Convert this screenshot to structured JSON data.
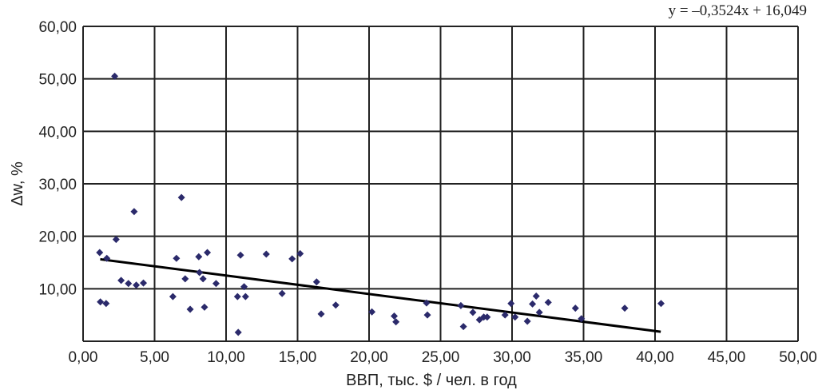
{
  "chart_data": {
    "type": "scatter",
    "title": "",
    "xlabel": "ВВП, тыс. $ / чел. в год",
    "ylabel": "Δw, %",
    "xlim": [
      0,
      50
    ],
    "ylim": [
      0,
      60
    ],
    "grid": true,
    "xticks": [
      0,
      5,
      10,
      15,
      20,
      25,
      30,
      35,
      40,
      45,
      50
    ],
    "yticks": [
      10,
      20,
      30,
      40,
      50,
      60
    ],
    "xtick_labels": [
      "0,00",
      "5,00",
      "10,00",
      "15,00",
      "20,00",
      "25,00",
      "30,00",
      "35,00",
      "40,00",
      "45,00",
      "50,00"
    ],
    "ytick_labels": [
      "10,00",
      "20,00",
      "30,00",
      "40,00",
      "50,00",
      "60,00"
    ],
    "marker_color": "#2b2a6b",
    "trend_color": "#000000",
    "trendline": {
      "slope": -0.3524,
      "intercept": 16.049,
      "x_range": [
        1.2,
        40.4
      ],
      "equation": "y = –0,3524x + 16,049"
    },
    "points": [
      [
        1.21,
        7.5
      ],
      [
        1.61,
        7.2
      ],
      [
        1.16,
        16.9
      ],
      [
        1.66,
        15.8
      ],
      [
        2.31,
        19.4
      ],
      [
        2.21,
        50.5
      ],
      [
        3.57,
        24.7
      ],
      [
        2.66,
        11.6
      ],
      [
        3.17,
        11.0
      ],
      [
        3.72,
        10.7
      ],
      [
        4.22,
        11.1
      ],
      [
        6.28,
        8.5
      ],
      [
        6.53,
        15.8
      ],
      [
        6.88,
        27.4
      ],
      [
        7.14,
        11.9
      ],
      [
        7.49,
        6.1
      ],
      [
        8.09,
        16.1
      ],
      [
        8.39,
        11.9
      ],
      [
        8.14,
        13.1
      ],
      [
        8.69,
        16.9
      ],
      [
        8.49,
        6.5
      ],
      [
        9.3,
        11.0
      ],
      [
        10.8,
        8.5
      ],
      [
        11.01,
        16.4
      ],
      [
        11.36,
        8.5
      ],
      [
        11.26,
        10.4
      ],
      [
        10.85,
        1.7
      ],
      [
        12.81,
        16.6
      ],
      [
        13.92,
        9.1
      ],
      [
        14.62,
        15.7
      ],
      [
        15.18,
        16.7
      ],
      [
        16.33,
        11.3
      ],
      [
        16.65,
        5.2
      ],
      [
        17.67,
        6.9
      ],
      [
        20.2,
        5.6
      ],
      [
        21.76,
        4.8
      ],
      [
        21.88,
        3.7
      ],
      [
        24.02,
        7.3
      ],
      [
        24.08,
        5.0
      ],
      [
        26.42,
        6.8
      ],
      [
        26.6,
        2.8
      ],
      [
        27.26,
        5.5
      ],
      [
        27.72,
        4.1
      ],
      [
        28.02,
        4.6
      ],
      [
        28.26,
        4.6
      ],
      [
        29.51,
        5.0
      ],
      [
        29.93,
        7.2
      ],
      [
        30.21,
        4.6
      ],
      [
        31.07,
        3.8
      ],
      [
        31.43,
        7.1
      ],
      [
        31.69,
        8.6
      ],
      [
        31.91,
        5.5
      ],
      [
        32.53,
        7.4
      ],
      [
        34.43,
        6.3
      ],
      [
        34.85,
        4.3
      ],
      [
        37.88,
        6.3
      ],
      [
        40.42,
        7.2
      ]
    ]
  }
}
